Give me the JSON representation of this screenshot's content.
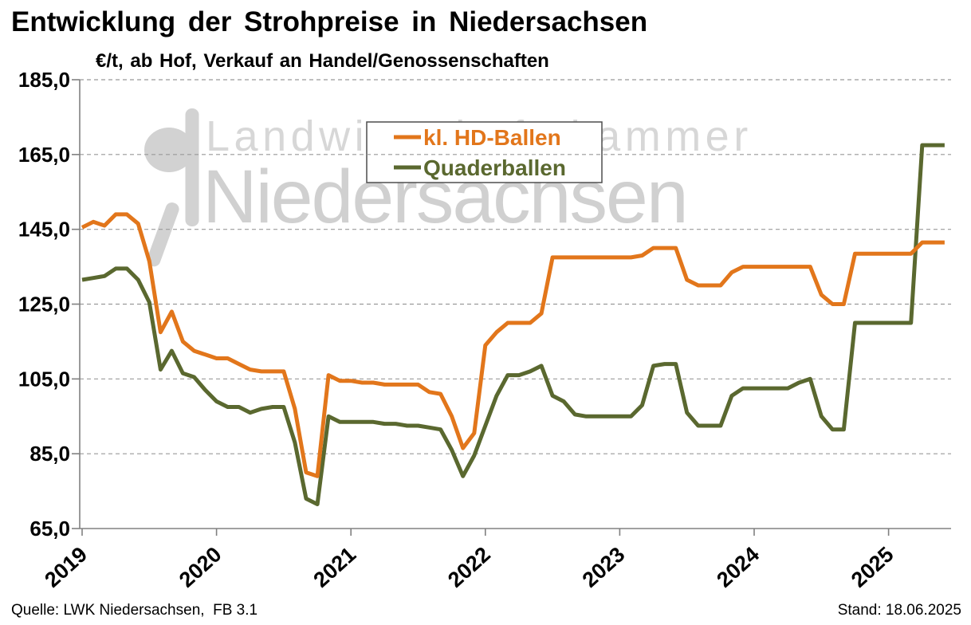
{
  "page": {
    "title": "Entwicklung der Strohpreise in Niedersachsen",
    "subtitle": "€/t, ab Hof, Verkauf an Handel/Genossenschaften",
    "footer_left": "Quelle: LWK Niedersachsen,  FB 3.1",
    "footer_right": "Stand: 18.06.2025"
  },
  "watermark": {
    "line1": "Landwirtschaftskammer",
    "line2": "Niedersachsen",
    "color_line1": "#d7d7d7",
    "color_line2": "#d0d0d0",
    "logo_color": "#d2d2d2"
  },
  "legend": {
    "position": "top-center-inside",
    "entries": [
      {
        "label": "kl. HD-Ballen",
        "color": "#E2761B"
      },
      {
        "label": "Quaderballen",
        "color": "#5A682F"
      }
    ]
  },
  "chart_data": {
    "type": "line",
    "title": "Entwicklung der Strohpreise in Niedersachsen",
    "subtitle": "€/t, ab Hof, Verkauf an Handel/Genossenschaften",
    "unit": "€/t",
    "freq": "monthly",
    "x_start": "2019-01",
    "x_end": "2025-06",
    "ylim": [
      65,
      185
    ],
    "grid": "dashed-horizontal",
    "y_ticks": [
      185,
      165,
      145,
      125,
      105,
      85,
      65
    ],
    "y_tick_labels": [
      "185,0",
      "165,0",
      "145,0",
      "125,0",
      "105,0",
      "85,0",
      "65,0"
    ],
    "x_tick_labels": [
      "2019",
      "2020",
      "2021",
      "2022",
      "2023",
      "2024",
      "2025"
    ],
    "axis_color": "#808080",
    "grid_color": "#999999",
    "series": [
      {
        "name": "kl. HD-Ballen",
        "color": "#E2761B",
        "values": [
          145.5,
          147,
          146,
          149,
          149,
          146.5,
          136.5,
          117.5,
          123,
          115,
          112.5,
          111.5,
          110.5,
          110.5,
          109,
          107.5,
          107,
          107,
          107,
          97,
          80,
          79,
          106,
          104.5,
          104.5,
          104,
          104,
          103.5,
          103.5,
          103.5,
          103.5,
          101.5,
          101,
          95,
          86.5,
          90.5,
          114,
          117.5,
          120,
          120,
          120,
          122.5,
          137.5,
          137.5,
          137.5,
          137.5,
          137.5,
          137.5,
          137.5,
          137.5,
          138,
          140,
          140,
          140,
          131.5,
          130,
          130,
          130,
          133.5,
          135,
          135,
          135,
          135,
          135,
          135,
          135,
          127.5,
          125,
          125,
          138.5,
          138.5,
          138.5,
          138.5,
          138.5,
          138.5,
          141.5,
          141.5,
          141.5
        ]
      },
      {
        "name": "Quaderballen",
        "color": "#5A682F",
        "values": [
          131.5,
          132,
          132.5,
          134.5,
          134.5,
          131.5,
          125.5,
          107.5,
          112.5,
          106.5,
          105.5,
          102,
          99,
          97.5,
          97.5,
          96,
          97,
          97.5,
          97.5,
          88,
          73,
          71.5,
          95,
          93.5,
          93.5,
          93.5,
          93.5,
          93,
          93,
          92.5,
          92.5,
          92,
          91.5,
          86,
          79,
          84.5,
          92.5,
          100.5,
          106,
          106,
          107,
          108.5,
          100.5,
          99,
          95.5,
          95,
          95,
          95,
          95,
          95,
          98,
          108.5,
          109,
          109,
          96,
          92.5,
          92.5,
          92.5,
          100.5,
          102.5,
          102.5,
          102.5,
          102.5,
          102.5,
          104,
          105,
          95,
          91.5,
          91.5,
          120,
          120,
          120,
          120,
          120,
          120,
          167.5,
          167.5,
          167.5
        ]
      }
    ]
  }
}
